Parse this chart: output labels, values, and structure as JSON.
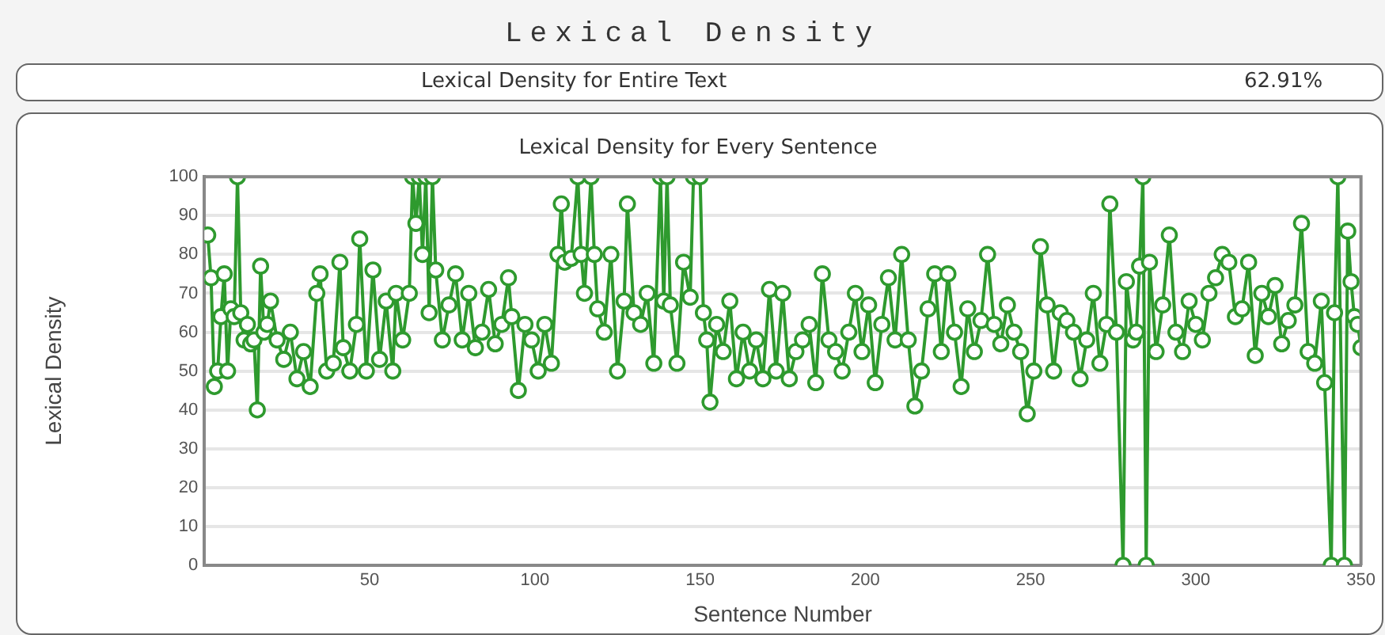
{
  "chart_data": {
    "type": "line",
    "title": "Lexical Density",
    "subtitle": "Lexical Density for Every Sentence",
    "xlabel": "Sentence Number",
    "ylabel": "Lexical Density",
    "annotations": [
      "Lexical Density for Entire Text",
      "62.91%"
    ],
    "x": [
      1,
      2,
      3,
      4,
      5,
      6,
      7,
      8,
      9,
      10,
      11,
      12,
      13,
      14,
      15,
      16,
      17,
      18,
      19,
      20,
      22,
      24,
      26,
      28,
      30,
      32,
      34,
      35,
      37,
      39,
      41,
      42,
      44,
      46,
      47,
      49,
      51,
      53,
      55,
      57,
      58,
      60,
      62,
      63,
      64,
      65,
      66,
      67,
      68,
      69,
      70,
      72,
      74,
      76,
      78,
      80,
      82,
      84,
      86,
      88,
      90,
      92,
      93,
      95,
      97,
      99,
      101,
      103,
      105,
      107,
      108,
      109,
      111,
      113,
      114,
      115,
      117,
      118,
      119,
      121,
      123,
      125,
      127,
      128,
      130,
      132,
      134,
      136,
      138,
      139,
      140,
      141,
      143,
      145,
      147,
      148,
      150,
      151,
      152,
      153,
      155,
      157,
      159,
      161,
      163,
      165,
      167,
      169,
      171,
      173,
      175,
      177,
      179,
      181,
      183,
      185,
      187,
      189,
      191,
      193,
      195,
      197,
      199,
      201,
      203,
      205,
      207,
      209,
      211,
      213,
      215,
      217,
      219,
      221,
      223,
      225,
      227,
      229,
      231,
      233,
      235,
      237,
      239,
      241,
      243,
      245,
      247,
      249,
      251,
      253,
      255,
      257,
      259,
      261,
      263,
      265,
      267,
      269,
      271,
      273,
      274,
      276,
      278,
      279,
      281,
      282,
      283,
      284,
      285,
      286,
      288,
      290,
      292,
      294,
      296,
      298,
      300,
      302,
      304,
      306,
      308,
      310,
      312,
      314,
      316,
      318,
      320,
      322,
      324,
      326,
      328,
      330,
      332,
      334,
      336,
      338,
      339,
      341,
      342,
      343,
      345,
      346,
      347,
      348,
      349,
      350
    ],
    "series": [
      {
        "color": "#2e9a2e",
        "values": [
          85,
          74,
          46,
          50,
          64,
          75,
          50,
          66,
          64,
          100,
          65,
          58,
          62,
          57,
          58,
          40,
          77,
          60,
          62,
          68,
          58,
          53,
          60,
          48,
          55,
          46,
          70,
          75,
          50,
          52,
          78,
          56,
          50,
          62,
          84,
          50,
          76,
          53,
          68,
          50,
          70,
          58,
          70,
          100,
          88,
          100,
          80,
          100,
          65,
          100,
          76,
          58,
          67,
          75,
          58,
          70,
          56,
          60,
          71,
          57,
          62,
          74,
          64,
          45,
          62,
          58,
          50,
          62,
          52,
          80,
          93,
          78,
          79,
          100,
          80,
          70,
          100,
          80,
          66,
          60,
          80,
          50,
          68,
          93,
          65,
          62,
          70,
          52,
          100,
          68,
          100,
          67,
          52,
          78,
          69,
          100,
          100,
          65,
          58,
          42,
          62,
          55,
          68,
          48,
          60,
          50,
          58,
          48,
          71,
          50,
          70,
          48,
          55,
          58,
          62,
          47,
          75,
          58,
          55,
          50,
          60,
          70,
          55,
          67,
          47,
          62,
          74,
          58,
          80,
          58,
          41,
          50,
          66,
          75,
          55,
          75,
          60,
          46,
          66,
          55,
          63,
          80,
          62,
          57,
          67,
          60,
          55,
          39,
          50,
          82,
          67,
          50,
          65,
          63,
          60,
          48,
          58,
          70,
          52,
          62,
          93,
          60,
          0,
          73,
          58,
          60,
          77,
          100,
          0,
          78,
          55,
          67,
          85,
          60,
          55,
          68,
          62,
          58,
          70,
          74,
          80,
          78,
          64,
          66,
          78,
          54,
          70,
          64,
          72,
          57,
          63,
          67,
          88,
          55,
          52,
          68,
          47,
          0,
          65,
          100,
          0,
          86,
          73,
          64,
          62,
          56
        ]
      }
    ],
    "xlim": [
      0,
      350
    ],
    "xticks": [
      50,
      100,
      150,
      200,
      250,
      300,
      350
    ],
    "ylim": [
      0,
      100
    ],
    "yticks": [
      0,
      10,
      20,
      30,
      40,
      50,
      60,
      70,
      80,
      90,
      100
    ],
    "grid": "y",
    "marker": "circle",
    "line_style": "solid"
  }
}
